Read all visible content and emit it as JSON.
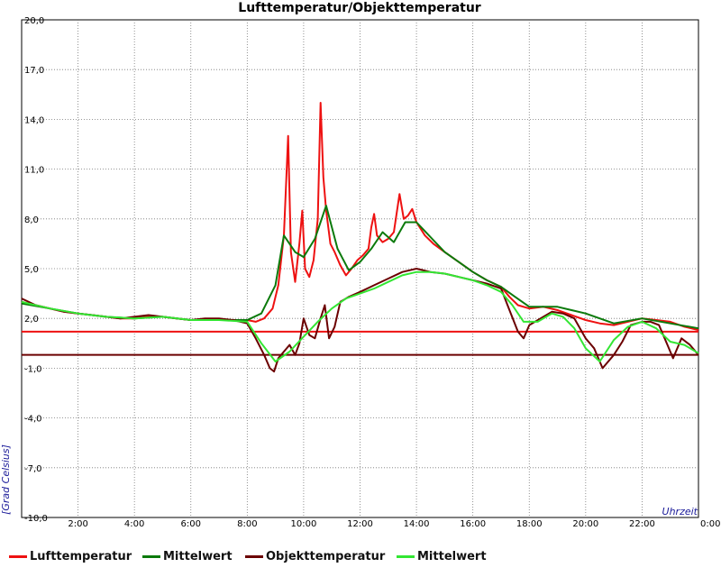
{
  "chart_data": {
    "type": "line",
    "title": "Lufttemperatur/Objekttemperatur",
    "xlabel": "Uhrzeit",
    "ylabel": "[Grad Celsius]",
    "xlim": [
      0,
      24
    ],
    "ylim": [
      -10,
      20
    ],
    "y_ticks": [
      {
        "value": 20,
        "label": "20,0"
      },
      {
        "value": 17,
        "label": "17,0"
      },
      {
        "value": 14,
        "label": "14,0"
      },
      {
        "value": 11,
        "label": "11,0"
      },
      {
        "value": 8,
        "label": "8,0"
      },
      {
        "value": 5,
        "label": "5,0"
      },
      {
        "value": 2,
        "label": "2,0"
      },
      {
        "value": -1,
        "label": "-1,0"
      },
      {
        "value": -4,
        "label": "-4,0"
      },
      {
        "value": -7,
        "label": "-7,0"
      },
      {
        "value": -10,
        "label": "-10,0"
      }
    ],
    "x_ticks": [
      {
        "value": 2,
        "label": "2:00"
      },
      {
        "value": 4,
        "label": "4:00"
      },
      {
        "value": 6,
        "label": "6:00"
      },
      {
        "value": 8,
        "label": "8:00"
      },
      {
        "value": 10,
        "label": "10:00"
      },
      {
        "value": 12,
        "label": "12:00"
      },
      {
        "value": 14,
        "label": "14:00"
      },
      {
        "value": 16,
        "label": "16:00"
      },
      {
        "value": 18,
        "label": "18:00"
      },
      {
        "value": 20,
        "label": "20:00"
      },
      {
        "value": 22,
        "label": "22:00"
      },
      {
        "value": 24,
        "label": "0:00"
      }
    ],
    "grid": true,
    "legend_position": "bottom",
    "reference_lines": [
      {
        "series": "Lufttemperatur",
        "value": 1.2,
        "color": "#ee1111"
      },
      {
        "series": "Objekttemperatur",
        "value": -0.2,
        "color": "#6b0000"
      }
    ],
    "series": [
      {
        "name": "Lufttemperatur",
        "color": "#ee1111",
        "x": [
          0,
          0.5,
          1,
          1.5,
          2,
          2.5,
          3,
          3.5,
          4,
          4.5,
          5,
          5.5,
          6,
          6.5,
          7,
          7.5,
          8,
          8.3,
          8.6,
          8.9,
          9.1,
          9.3,
          9.45,
          9.55,
          9.7,
          9.85,
          9.95,
          10.05,
          10.2,
          10.35,
          10.5,
          10.6,
          10.7,
          10.8,
          10.95,
          11.1,
          11.3,
          11.5,
          11.7,
          11.9,
          12.1,
          12.3,
          12.4,
          12.5,
          12.6,
          12.8,
          13.0,
          13.2,
          13.4,
          13.55,
          13.7,
          13.85,
          14.0,
          14.3,
          14.6,
          15.0,
          15.5,
          16.0,
          16.5,
          17.0,
          17.3,
          17.6,
          18.0,
          18.5,
          19.0,
          19.5,
          20.0,
          20.5,
          21.0,
          21.5,
          22.0,
          22.5,
          23.0,
          23.5,
          24.0
        ],
        "y": [
          3.0,
          2.8,
          2.6,
          2.4,
          2.3,
          2.2,
          2.1,
          2.0,
          2.0,
          2.1,
          2.1,
          2.0,
          1.9,
          1.9,
          1.9,
          1.9,
          1.9,
          1.8,
          2.0,
          2.6,
          4.0,
          7.0,
          13.0,
          6.0,
          4.2,
          6.5,
          8.5,
          5.0,
          4.5,
          5.5,
          8.0,
          15.0,
          10.5,
          8.5,
          6.5,
          6.0,
          5.2,
          4.6,
          5.0,
          5.5,
          5.8,
          6.2,
          7.5,
          8.3,
          7.0,
          6.6,
          6.8,
          7.2,
          9.5,
          8.0,
          8.2,
          8.6,
          7.8,
          7.0,
          6.5,
          6.0,
          5.4,
          4.8,
          4.3,
          3.9,
          3.3,
          2.8,
          2.6,
          2.7,
          2.5,
          2.2,
          1.9,
          1.7,
          1.6,
          1.8,
          2.0,
          1.9,
          1.8,
          1.5,
          1.3
        ]
      },
      {
        "name": "Mittelwert",
        "color": "#0b7a0b",
        "x": [
          0,
          1,
          2,
          3,
          4,
          5,
          6,
          7,
          8,
          8.5,
          9,
          9.3,
          9.7,
          10.0,
          10.4,
          10.8,
          11.2,
          11.6,
          12.0,
          12.4,
          12.8,
          13.2,
          13.6,
          14.0,
          14.5,
          15.0,
          15.5,
          16.0,
          16.5,
          17.0,
          17.5,
          18.0,
          19.0,
          20.0,
          21.0,
          22.0,
          23.0,
          24.0
        ],
        "y": [
          2.9,
          2.6,
          2.3,
          2.1,
          2.0,
          2.1,
          1.9,
          1.9,
          1.9,
          2.3,
          4.0,
          7.0,
          6.0,
          5.7,
          6.8,
          8.8,
          6.2,
          4.9,
          5.4,
          6.2,
          7.2,
          6.6,
          7.8,
          7.8,
          6.9,
          6.0,
          5.4,
          4.8,
          4.3,
          3.9,
          3.3,
          2.7,
          2.7,
          2.3,
          1.7,
          2.0,
          1.7,
          1.4
        ]
      },
      {
        "name": "Objekttemperatur",
        "color": "#6b0000",
        "x": [
          0,
          0.5,
          1,
          1.5,
          2,
          2.5,
          3,
          3.5,
          4,
          4.5,
          5,
          5.5,
          6,
          6.5,
          7,
          7.5,
          8,
          8.3,
          8.6,
          8.8,
          8.95,
          9.1,
          9.3,
          9.5,
          9.7,
          9.85,
          10.0,
          10.2,
          10.4,
          10.6,
          10.75,
          10.9,
          11.1,
          11.3,
          11.6,
          12.0,
          12.5,
          13.0,
          13.5,
          14.0,
          14.5,
          15.0,
          15.5,
          16.0,
          16.5,
          17.0,
          17.3,
          17.6,
          17.8,
          18.0,
          18.4,
          18.8,
          19.2,
          19.6,
          20.0,
          20.3,
          20.6,
          21.0,
          21.3,
          21.6,
          22.0,
          22.3,
          22.6,
          22.9,
          23.1,
          23.4,
          23.7,
          24.0
        ],
        "y": [
          3.2,
          2.8,
          2.6,
          2.4,
          2.3,
          2.2,
          2.1,
          2.0,
          2.1,
          2.2,
          2.1,
          2.0,
          1.9,
          2.0,
          2.0,
          1.9,
          1.7,
          0.8,
          -0.2,
          -1.0,
          -1.2,
          -0.4,
          0.0,
          0.4,
          -0.2,
          0.5,
          2.0,
          1.0,
          0.8,
          2.0,
          2.8,
          0.8,
          1.5,
          3.0,
          3.3,
          3.6,
          4.0,
          4.4,
          4.8,
          5.0,
          4.8,
          4.7,
          4.5,
          4.3,
          4.1,
          3.8,
          2.5,
          1.2,
          0.8,
          1.6,
          2.0,
          2.4,
          2.3,
          2.0,
          0.8,
          0.2,
          -1.0,
          -0.2,
          0.6,
          1.6,
          1.8,
          1.8,
          1.6,
          0.4,
          -0.4,
          0.8,
          0.4,
          -0.2
        ]
      },
      {
        "name": "Mittelwert",
        "color": "#33e633",
        "x": [
          0,
          1,
          2,
          3,
          4,
          5,
          6,
          7,
          8,
          8.5,
          9.0,
          9.5,
          10.0,
          10.5,
          11.0,
          11.5,
          12.0,
          12.5,
          13.0,
          13.5,
          14.0,
          14.5,
          15.0,
          15.5,
          16.0,
          16.5,
          17.0,
          17.4,
          17.8,
          18.3,
          18.8,
          19.2,
          19.6,
          20.0,
          20.5,
          21.0,
          21.5,
          22.0,
          22.5,
          23.0,
          23.5,
          24.0
        ],
        "y": [
          3.0,
          2.6,
          2.3,
          2.1,
          2.0,
          2.1,
          1.9,
          1.9,
          1.8,
          0.5,
          -0.6,
          0.0,
          0.9,
          1.8,
          2.6,
          3.2,
          3.5,
          3.8,
          4.2,
          4.6,
          4.8,
          4.8,
          4.7,
          4.5,
          4.3,
          4.0,
          3.6,
          2.8,
          1.8,
          1.8,
          2.3,
          2.1,
          1.4,
          0.2,
          -0.6,
          0.7,
          1.5,
          1.8,
          1.4,
          0.6,
          0.4,
          -0.1
        ]
      }
    ]
  }
}
